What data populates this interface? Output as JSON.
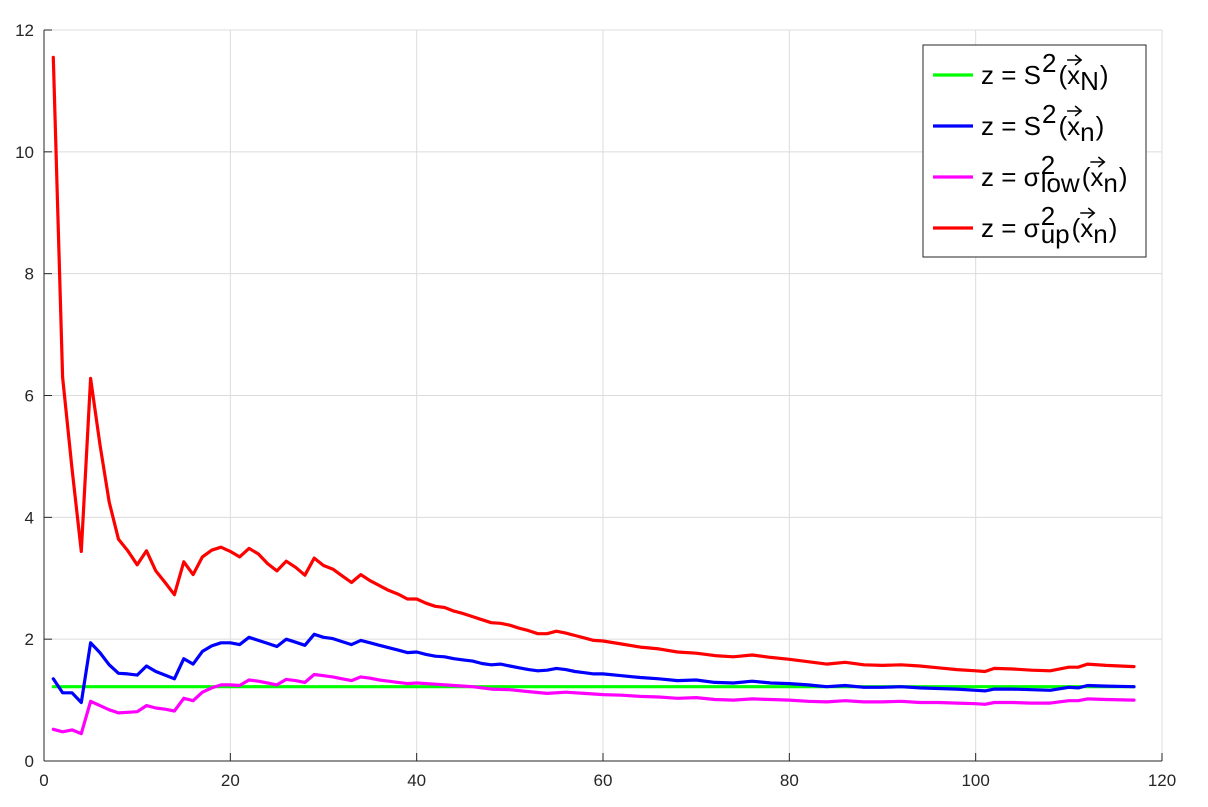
{
  "chart_data": {
    "type": "line",
    "title": "",
    "xlabel": "",
    "ylabel": "",
    "xlim": [
      0,
      120
    ],
    "ylim": [
      0,
      12
    ],
    "xticks": [
      "0",
      "20",
      "40",
      "60",
      "80",
      "100",
      "120"
    ],
    "yticks": [
      "0",
      "2",
      "4",
      "6",
      "8",
      "10",
      "12"
    ],
    "grid": true,
    "legend_position": "top-right",
    "series": [
      {
        "name": "z = S²(x⃗_N)",
        "legend": {
          "pre": "z = S",
          "sup": "2",
          "sub": "N"
        },
        "color": "#00ff00",
        "x": [
          1,
          117
        ],
        "y": [
          1.22,
          1.22
        ]
      },
      {
        "name": "z = S²(x⃗_n)",
        "legend": {
          "pre": "z = S",
          "sup": "2",
          "sub": "n"
        },
        "color": "#0000ff",
        "x": [
          1,
          2,
          3,
          4,
          5,
          6,
          7,
          8,
          9,
          10,
          11,
          12,
          13,
          14,
          15,
          16,
          17,
          18,
          19,
          20,
          21,
          22,
          23,
          24,
          25,
          26,
          27,
          28,
          29,
          30,
          31,
          32,
          33,
          34,
          35,
          36,
          37,
          38,
          39,
          40,
          41,
          42,
          43,
          44,
          45,
          46,
          47,
          48,
          49,
          50,
          51,
          52,
          53,
          54,
          55,
          56,
          57,
          58,
          59,
          60,
          62,
          64,
          66,
          68,
          70,
          72,
          74,
          76,
          78,
          80,
          82,
          84,
          86,
          88,
          90,
          92,
          94,
          96,
          98,
          100,
          101,
          102,
          104,
          106,
          108,
          110,
          111,
          112,
          114,
          117
        ],
        "y": [
          1.35,
          1.12,
          1.12,
          0.96,
          1.94,
          1.78,
          1.58,
          1.44,
          1.43,
          1.41,
          1.56,
          1.47,
          1.41,
          1.35,
          1.68,
          1.59,
          1.8,
          1.89,
          1.94,
          1.94,
          1.91,
          2.03,
          1.98,
          1.93,
          1.88,
          2.0,
          1.95,
          1.9,
          2.08,
          2.03,
          2.01,
          1.96,
          1.91,
          1.98,
          1.94,
          1.9,
          1.86,
          1.82,
          1.78,
          1.79,
          1.75,
          1.72,
          1.71,
          1.68,
          1.66,
          1.64,
          1.6,
          1.58,
          1.59,
          1.56,
          1.53,
          1.5,
          1.48,
          1.49,
          1.52,
          1.5,
          1.47,
          1.45,
          1.43,
          1.43,
          1.4,
          1.37,
          1.35,
          1.32,
          1.33,
          1.29,
          1.28,
          1.31,
          1.28,
          1.27,
          1.25,
          1.22,
          1.24,
          1.21,
          1.21,
          1.22,
          1.2,
          1.19,
          1.18,
          1.16,
          1.15,
          1.18,
          1.18,
          1.17,
          1.16,
          1.21,
          1.2,
          1.24,
          1.23,
          1.22
        ]
      },
      {
        "name": "z = σ²_low(x⃗_n)",
        "legend": {
          "pre": "z = σ",
          "sup": "2",
          "low": "low",
          "sub": "n"
        },
        "color": "#ff00ff",
        "x": [
          1,
          2,
          3,
          4,
          5,
          6,
          7,
          8,
          9,
          10,
          11,
          12,
          13,
          14,
          15,
          16,
          17,
          18,
          19,
          20,
          21,
          22,
          23,
          24,
          25,
          26,
          27,
          28,
          29,
          30,
          31,
          32,
          33,
          34,
          35,
          36,
          37,
          38,
          39,
          40,
          42,
          44,
          46,
          48,
          50,
          52,
          54,
          56,
          58,
          60,
          62,
          64,
          66,
          68,
          70,
          72,
          74,
          76,
          78,
          80,
          82,
          84,
          86,
          88,
          90,
          92,
          94,
          96,
          98,
          100,
          101,
          102,
          104,
          106,
          108,
          110,
          111,
          112,
          114,
          117
        ],
        "y": [
          0.52,
          0.48,
          0.51,
          0.45,
          0.98,
          0.91,
          0.84,
          0.79,
          0.8,
          0.81,
          0.91,
          0.87,
          0.85,
          0.82,
          1.03,
          0.99,
          1.13,
          1.2,
          1.25,
          1.25,
          1.24,
          1.33,
          1.31,
          1.28,
          1.25,
          1.34,
          1.32,
          1.29,
          1.42,
          1.4,
          1.38,
          1.35,
          1.32,
          1.38,
          1.36,
          1.33,
          1.31,
          1.29,
          1.27,
          1.28,
          1.26,
          1.24,
          1.22,
          1.18,
          1.17,
          1.14,
          1.11,
          1.13,
          1.11,
          1.09,
          1.08,
          1.06,
          1.05,
          1.03,
          1.04,
          1.01,
          1.0,
          1.02,
          1.01,
          1.0,
          0.98,
          0.97,
          0.99,
          0.97,
          0.97,
          0.98,
          0.96,
          0.96,
          0.95,
          0.94,
          0.93,
          0.96,
          0.96,
          0.95,
          0.95,
          0.99,
          0.99,
          1.02,
          1.01,
          1.0
        ]
      },
      {
        "name": "z = σ²_up(x⃗_n)",
        "legend": {
          "pre": "z = σ",
          "sup": "2",
          "low": "up",
          "sub": "n"
        },
        "color": "#ff0000",
        "x": [
          1,
          2,
          3,
          4,
          5,
          6,
          7,
          8,
          9,
          10,
          11,
          12,
          13,
          14,
          15,
          16,
          17,
          18,
          19,
          20,
          21,
          22,
          23,
          24,
          25,
          26,
          27,
          28,
          29,
          30,
          31,
          32,
          33,
          34,
          35,
          36,
          37,
          38,
          39,
          40,
          41,
          42,
          43,
          44,
          45,
          46,
          47,
          48,
          49,
          50,
          51,
          52,
          53,
          54,
          55,
          56,
          57,
          58,
          59,
          60,
          62,
          64,
          66,
          68,
          70,
          72,
          74,
          76,
          78,
          80,
          82,
          84,
          86,
          88,
          90,
          92,
          94,
          96,
          98,
          100,
          101,
          102,
          104,
          106,
          108,
          110,
          111,
          112,
          114,
          117
        ],
        "y": [
          11.55,
          6.3,
          4.8,
          3.44,
          6.28,
          5.2,
          4.25,
          3.64,
          3.45,
          3.22,
          3.45,
          3.12,
          2.93,
          2.73,
          3.27,
          3.06,
          3.35,
          3.46,
          3.51,
          3.44,
          3.35,
          3.49,
          3.4,
          3.24,
          3.12,
          3.28,
          3.18,
          3.05,
          3.33,
          3.21,
          3.15,
          3.04,
          2.93,
          3.06,
          2.96,
          2.88,
          2.8,
          2.74,
          2.66,
          2.66,
          2.59,
          2.54,
          2.52,
          2.46,
          2.42,
          2.37,
          2.32,
          2.27,
          2.26,
          2.23,
          2.18,
          2.14,
          2.09,
          2.09,
          2.13,
          2.1,
          2.06,
          2.02,
          1.98,
          1.97,
          1.92,
          1.87,
          1.84,
          1.79,
          1.77,
          1.73,
          1.71,
          1.74,
          1.7,
          1.67,
          1.63,
          1.59,
          1.62,
          1.58,
          1.57,
          1.58,
          1.56,
          1.53,
          1.5,
          1.48,
          1.47,
          1.52,
          1.51,
          1.49,
          1.48,
          1.54,
          1.54,
          1.59,
          1.57,
          1.55
        ]
      }
    ]
  }
}
